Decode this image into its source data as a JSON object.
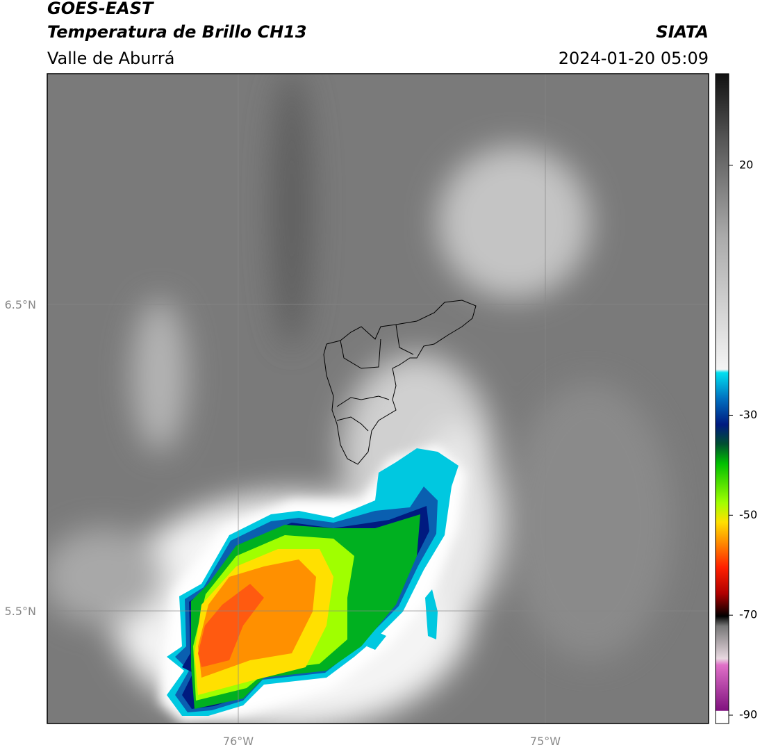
{
  "header": {
    "title": "GOES-EAST",
    "subtitle": "Temperatura de Brillo CH13",
    "region": "Valle de Aburrá",
    "source": "SIATA",
    "datetime": "2024-01-20 05:09"
  },
  "map": {
    "lat_labels": [
      "6.5°N",
      "5.5°N"
    ],
    "lon_labels": [
      "76°W",
      "75°W"
    ]
  },
  "colorbar": {
    "range": [
      -90,
      40
    ],
    "ticks": [
      20,
      -30,
      -50,
      -70,
      -90
    ]
  }
}
